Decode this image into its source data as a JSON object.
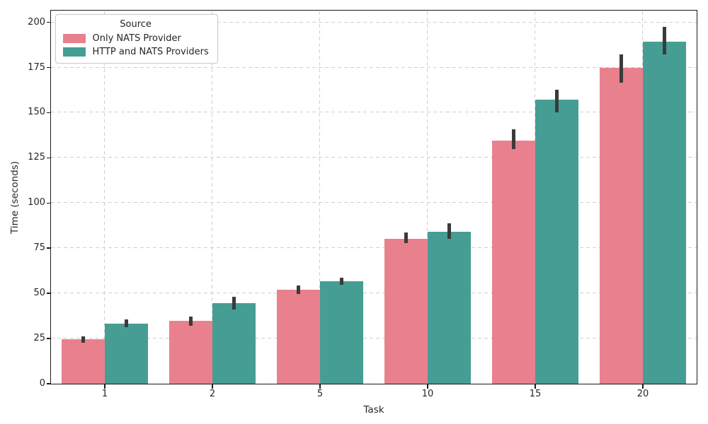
{
  "chart_data": {
    "type": "bar",
    "title": "",
    "xlabel": "Task",
    "ylabel": "Time (seconds)",
    "categories": [
      "1",
      "2",
      "5",
      "10",
      "15",
      "20"
    ],
    "series": [
      {
        "name": "Only NATS Provider",
        "color": "#e8818d",
        "values": [
          24.5,
          34.5,
          52,
          80,
          134.5,
          174.5
        ],
        "err_low": [
          22.5,
          32,
          49.5,
          77.5,
          129.5,
          166.5
        ],
        "err_high": [
          26,
          37,
          54,
          83.5,
          140.5,
          182
        ]
      },
      {
        "name": "HTTP and NATS Providers",
        "color": "#469d94",
        "values": [
          33,
          44.5,
          56.5,
          84,
          157,
          189
        ],
        "err_low": [
          31,
          41,
          54.5,
          80,
          150,
          182
        ],
        "err_high": [
          35.5,
          48,
          58.5,
          88.5,
          162.5,
          197.5
        ]
      }
    ],
    "ylim": [
      0,
      206.5
    ],
    "yticks": [
      0,
      25,
      50,
      75,
      100,
      125,
      150,
      175,
      200
    ],
    "grid": true,
    "legend": {
      "title": "Source",
      "position": "upper-left"
    },
    "error_bar_color": "#3b3b3b",
    "grid_color": "#cfcfcf",
    "spine_color": "#1a1a1a"
  }
}
